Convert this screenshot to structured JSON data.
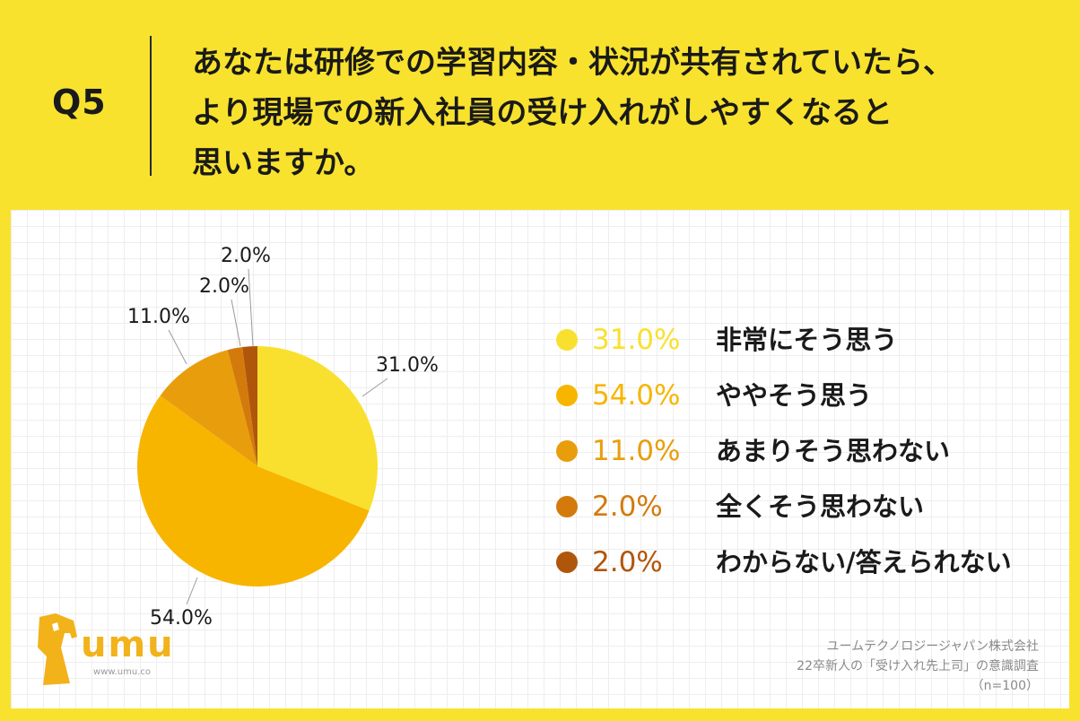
{
  "question": {
    "label": "Q5",
    "lines": [
      "あなたは研修での学習内容・状況が共有されていたら、",
      "より現場での新入社員の受け入れがしやすくなると",
      "思いますか。"
    ]
  },
  "chart_data": {
    "type": "pie",
    "categories": [
      "非常にそう思う",
      "ややそう思う",
      "あまりそう思わない",
      "全くそう思わない",
      "わからない/答えられない"
    ],
    "values": [
      31.0,
      54.0,
      11.0,
      2.0,
      2.0
    ],
    "value_labels": [
      "31.0%",
      "54.0%",
      "11.0%",
      "2.0%",
      "2.0%"
    ],
    "colors": [
      "#f9e02f",
      "#f7b500",
      "#e89e0c",
      "#d47a0c",
      "#b0560a"
    ],
    "legend_placement": "right"
  },
  "logo": {
    "text": "umu",
    "url": "www.umu.co"
  },
  "source": {
    "lines": [
      "ユームテクノロジージャパン株式会社",
      "22卒新人の「受け入れ先上司」の意識調査",
      "（n=100）"
    ]
  }
}
